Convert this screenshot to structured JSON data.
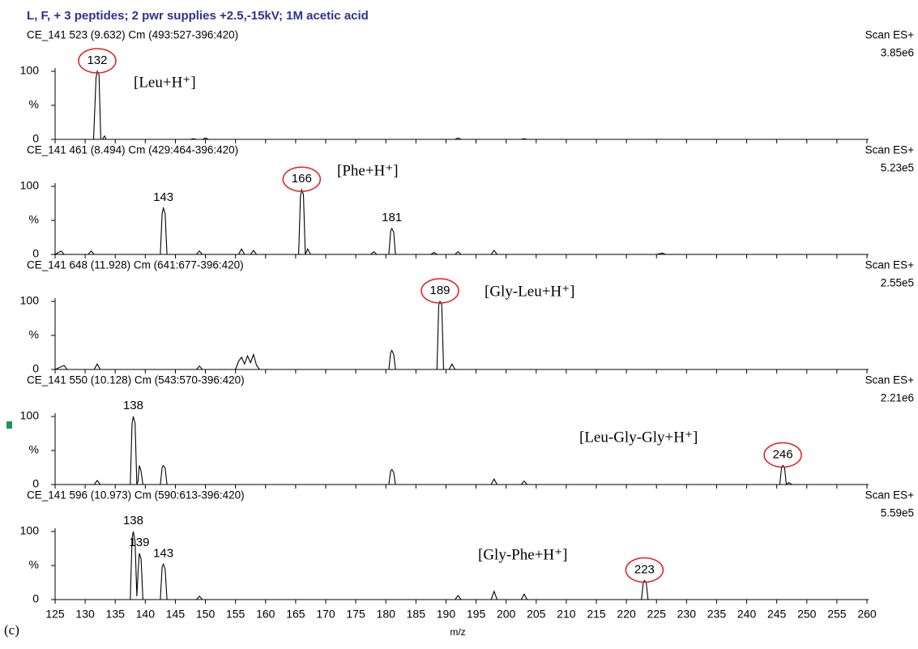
{
  "title": "L, F, + 3 peptides; 2 pwr supplies +2.5,-15kV; 1M acetic acid",
  "figure_label": "(c)",
  "chart_data": [
    {
      "type": "line",
      "header": "CE_141 523 (9.632) Cm (493:527-396:420)",
      "scan": "Scan ES+",
      "intensity": "3.85e6",
      "color": "#a0342c",
      "annotation": "[Leu+H⁺]",
      "xlim": [
        125,
        260
      ],
      "xticks": [
        125,
        130,
        135,
        140,
        145,
        150,
        155,
        160,
        165,
        170,
        175,
        180,
        185,
        190,
        195,
        200,
        205,
        210,
        215,
        220,
        225,
        230,
        235,
        240,
        245,
        250,
        255,
        260
      ],
      "ylim": [
        0,
        100
      ],
      "yticks": [
        0,
        {
          "value": 50,
          "label": "%"
        },
        100
      ],
      "x": [
        125,
        131.4,
        131.8,
        132,
        132.3,
        132.6,
        132.9,
        133.2,
        133.5,
        147.5,
        148,
        148.5,
        149.5,
        150,
        150.5,
        191.5,
        192,
        192.5,
        202.5,
        203,
        203.5,
        260
      ],
      "values": [
        0,
        0,
        90,
        100,
        95,
        0,
        0,
        5,
        0,
        0,
        1,
        0,
        0,
        2,
        0,
        0,
        2,
        0,
        0,
        1,
        0,
        0
      ],
      "peak_labels": [
        {
          "x": 132,
          "y": 100,
          "circled": true
        }
      ]
    },
    {
      "type": "line",
      "header": "CE_141 461 (8.494) Cm (429:464-396:420)",
      "scan": "Scan ES+",
      "intensity": "5.23e5",
      "color": "#000000",
      "annotation": "[Phe+H⁺]",
      "xlim": [
        125,
        260
      ],
      "xticks": [
        125,
        130,
        135,
        140,
        145,
        150,
        155,
        160,
        165,
        170,
        175,
        180,
        185,
        190,
        195,
        200,
        205,
        210,
        215,
        220,
        225,
        230,
        235,
        240,
        245,
        250,
        255,
        260
      ],
      "ylim": [
        0,
        100
      ],
      "yticks": [
        0,
        {
          "value": 50,
          "label": "%"
        },
        100
      ],
      "x": [
        125,
        126,
        126.5,
        127,
        130.5,
        131,
        131.5,
        142.5,
        142.8,
        143,
        143.3,
        143.6,
        148.5,
        149,
        149.5,
        155.5,
        156,
        156.5,
        157.5,
        158,
        158.5,
        165.5,
        165.8,
        166,
        166.3,
        166.6,
        167,
        167.5,
        177.5,
        178,
        178.5,
        180.5,
        180.8,
        181,
        181.3,
        181.6,
        187.5,
        188,
        188.5,
        191.5,
        192,
        192.5,
        197.5,
        198,
        198.5,
        225,
        226,
        226.5,
        260
      ],
      "values": [
        0,
        5,
        0,
        0,
        0,
        5,
        0,
        0,
        60,
        68,
        60,
        0,
        0,
        5,
        0,
        0,
        8,
        0,
        0,
        6,
        0,
        0,
        85,
        95,
        88,
        0,
        8,
        0,
        0,
        4,
        0,
        0,
        35,
        38,
        33,
        0,
        0,
        3,
        0,
        0,
        4,
        0,
        0,
        6,
        0,
        0,
        2,
        0,
        0
      ],
      "peak_labels": [
        {
          "x": 143,
          "y": 68,
          "circled": false
        },
        {
          "x": 166,
          "y": 95,
          "circled": true
        },
        {
          "x": 181,
          "y": 38,
          "circled": false
        }
      ]
    },
    {
      "type": "line",
      "header": "CE_141 648 (11.928) Cm (641:677-396:420)",
      "scan": "Scan ES+",
      "intensity": "2.55e5",
      "color": "#8e2a8e",
      "annotation": "[Gly-Leu+H⁺]",
      "xlim": [
        125,
        260
      ],
      "xticks": [
        125,
        130,
        135,
        140,
        145,
        150,
        155,
        160,
        165,
        170,
        175,
        180,
        185,
        190,
        195,
        200,
        205,
        210,
        215,
        220,
        225,
        230,
        235,
        240,
        245,
        250,
        255,
        260
      ],
      "ylim": [
        0,
        100
      ],
      "yticks": [
        0,
        {
          "value": 50,
          "label": "%"
        },
        100
      ],
      "x": [
        125,
        126.5,
        127,
        127.5,
        131.5,
        132,
        132.5,
        148.5,
        149,
        149.5,
        155,
        155.5,
        156,
        156.5,
        157,
        157.5,
        158,
        158.5,
        159,
        180.5,
        180.8,
        181,
        181.3,
        181.6,
        188.5,
        188.8,
        189,
        189.3,
        189.6,
        190.5,
        191,
        191.5,
        260
      ],
      "values": [
        0,
        6,
        0,
        0,
        0,
        8,
        0,
        0,
        5,
        0,
        0,
        12,
        18,
        8,
        20,
        10,
        22,
        6,
        0,
        0,
        25,
        28,
        22,
        0,
        0,
        95,
        100,
        95,
        0,
        0,
        8,
        0,
        0
      ],
      "peak_labels": [
        {
          "x": 189,
          "y": 100,
          "circled": true
        }
      ]
    },
    {
      "type": "line",
      "header": "CE_141 550 (10.128) Cm (543:570-396:420)",
      "scan": "Scan ES+",
      "intensity": "2.21e6",
      "color": "#1a9a4a",
      "annotation": "[Leu-Gly-Gly+H⁺]",
      "xlim": [
        125,
        260
      ],
      "xticks": [
        125,
        130,
        135,
        140,
        145,
        150,
        155,
        160,
        165,
        170,
        175,
        180,
        185,
        190,
        195,
        200,
        205,
        210,
        215,
        220,
        225,
        230,
        235,
        240,
        245,
        250,
        255,
        260
      ],
      "ylim": [
        0,
        100
      ],
      "yticks": [
        0,
        {
          "value": 50,
          "label": "%"
        },
        100
      ],
      "x": [
        125,
        131.5,
        132,
        132.5,
        137.5,
        137.8,
        138,
        138.3,
        138.6,
        138.8,
        139,
        139.3,
        139.6,
        142.5,
        142.8,
        143,
        143.3,
        143.6,
        180.5,
        180.8,
        181,
        181.3,
        181.6,
        197.5,
        198,
        198.5,
        202.5,
        203,
        203.5,
        245.5,
        245.8,
        246,
        246.3,
        246.6,
        247,
        247.5,
        260
      ],
      "values": [
        0,
        0,
        6,
        0,
        0,
        90,
        100,
        90,
        0,
        5,
        28,
        20,
        0,
        0,
        25,
        28,
        24,
        0,
        0,
        20,
        22,
        18,
        0,
        0,
        8,
        0,
        0,
        5,
        0,
        0,
        25,
        28,
        25,
        0,
        3,
        0,
        0
      ],
      "peak_labels": [
        {
          "x": 138,
          "y": 100,
          "circled": false
        },
        {
          "x": 246,
          "y": 28,
          "circled": true
        }
      ]
    },
    {
      "type": "line",
      "header": "CE_141 596 (10.973) Cm (590:613-396:420)",
      "scan": "Scan ES+",
      "intensity": "5.59e5",
      "color": "#a0342c",
      "annotation": "[Gly-Phe+H⁺]",
      "xlim": [
        125,
        260
      ],
      "xticks": [
        125,
        130,
        135,
        140,
        145,
        150,
        155,
        160,
        165,
        170,
        175,
        180,
        185,
        190,
        195,
        200,
        205,
        210,
        215,
        220,
        225,
        230,
        235,
        240,
        245,
        250,
        255,
        260
      ],
      "ylim": [
        0,
        100
      ],
      "yticks": [
        0,
        {
          "value": 50,
          "label": "%"
        },
        100
      ],
      "x": [
        125,
        137.5,
        137.8,
        138,
        138.3,
        138.6,
        138.8,
        139,
        139.3,
        139.6,
        142.5,
        142.8,
        143,
        143.3,
        143.6,
        148.5,
        149,
        149.5,
        191.5,
        192,
        192.5,
        197.5,
        198,
        198.5,
        202.5,
        203,
        203.5,
        222.5,
        222.8,
        223,
        223.3,
        223.6,
        260
      ],
      "values": [
        0,
        0,
        90,
        100,
        85,
        5,
        40,
        68,
        60,
        0,
        0,
        48,
        52,
        45,
        0,
        0,
        5,
        0,
        0,
        6,
        0,
        0,
        12,
        0,
        0,
        8,
        0,
        0,
        25,
        28,
        25,
        0,
        0
      ],
      "peak_labels": [
        {
          "x": 138,
          "y": 100,
          "circled": false
        },
        {
          "x": 139,
          "y": 68,
          "circled": false
        },
        {
          "x": 143,
          "y": 52,
          "circled": false
        },
        {
          "x": 223,
          "y": 28,
          "circled": true
        }
      ],
      "xlabel": "m/z"
    }
  ]
}
